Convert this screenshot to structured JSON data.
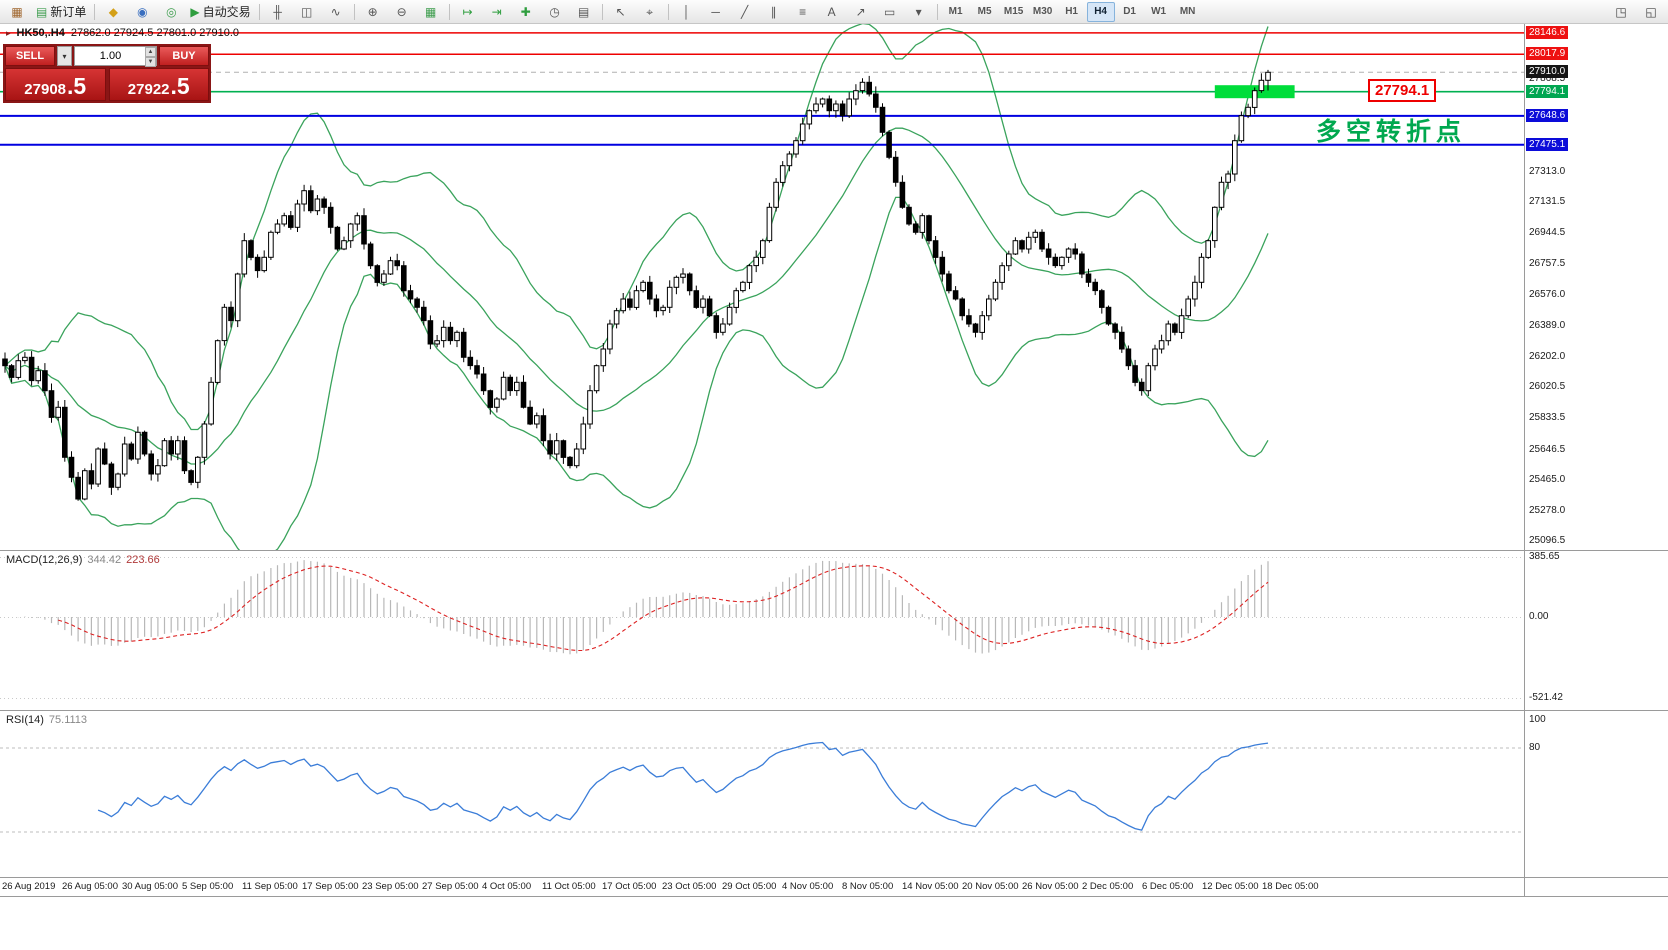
{
  "colors": {
    "up_candle": "#ffffff",
    "down_candle": "#000000",
    "candle_outline": "#000000",
    "bollinger": "#3aa35c",
    "bid_line": "#b0b0b0",
    "accent_red": "#ee0000",
    "accent_green": "#00b050",
    "accent_blue": "#0000e0"
  },
  "toolbar": {
    "items": [
      {
        "name": "chart-window-icon",
        "glyph": "▦",
        "glyph_color": "#a0672f"
      },
      {
        "name": "new-order-button",
        "glyph": "▤",
        "glyph_color": "#3f9e4f",
        "label": "新订单"
      },
      {
        "type": "sep"
      },
      {
        "name": "alert-icon",
        "glyph": "◆",
        "glyph_color": "#d4a017"
      },
      {
        "name": "news-icon",
        "glyph": "◉",
        "glyph_color": "#3a6fbf"
      },
      {
        "name": "mailbox-icon",
        "glyph": "◎",
        "glyph_color": "#3f9e4f"
      },
      {
        "name": "auto-trading-button",
        "glyph": "▶",
        "glyph_color": "#2f9e3f",
        "label": "自动交易"
      },
      {
        "type": "sep"
      },
      {
        "name": "bar-chart-icon",
        "glyph": "╫"
      },
      {
        "name": "candlestick-chart-icon",
        "glyph": "◫"
      },
      {
        "name": "line-chart-icon",
        "glyph": "∿"
      },
      {
        "type": "sep"
      },
      {
        "name": "zoom-in-icon",
        "glyph": "⊕"
      },
      {
        "name": "zoom-out-icon",
        "glyph": "⊖"
      },
      {
        "name": "tile-windows-icon",
        "glyph": "▦",
        "glyph_color": "#3f9e4f"
      },
      {
        "type": "sep"
      },
      {
        "name": "auto-scroll-icon",
        "glyph": "↦",
        "glyph_color": "#2f9e3f"
      },
      {
        "name": "chart-shift-icon",
        "glyph": "⇥",
        "glyph_color": "#2f9e3f"
      },
      {
        "name": "add-indicator-icon",
        "glyph": "✚",
        "glyph_color": "#2f9e3f"
      },
      {
        "name": "period-icon",
        "glyph": "◷"
      },
      {
        "name": "template-icon",
        "glyph": "▤"
      },
      {
        "type": "sep"
      },
      {
        "name": "cursor-icon",
        "glyph": "↖"
      },
      {
        "name": "crosshair-icon",
        "glyph": "⌖"
      },
      {
        "type": "sep"
      },
      {
        "name": "vertical-line-icon",
        "glyph": "│"
      },
      {
        "name": "horizontal-line-icon",
        "glyph": "─"
      },
      {
        "name": "trendline-icon",
        "glyph": "╱"
      },
      {
        "name": "channel-icon",
        "glyph": "∥"
      },
      {
        "name": "fibonacci-icon",
        "glyph": "≡"
      },
      {
        "name": "text-tool-icon",
        "glyph": "A"
      },
      {
        "name": "arrows-tool-icon",
        "glyph": "↗"
      },
      {
        "name": "shapes-tool-icon",
        "glyph": "▭"
      },
      {
        "name": "tools-dropdown-icon",
        "glyph": "▾"
      },
      {
        "type": "sep"
      }
    ],
    "timeframes": [
      "M1",
      "M5",
      "M15",
      "M30",
      "H1",
      "H4",
      "D1",
      "W1",
      "MN"
    ],
    "active_timeframe": "H4",
    "right_items": [
      {
        "name": "chat-icon",
        "glyph": "◳"
      },
      {
        "name": "layout-icon",
        "glyph": "◱"
      }
    ]
  },
  "trade_panel": {
    "sell_label": "SELL",
    "buy_label": "BUY",
    "lot": "1.00",
    "sell_price": "27908",
    "sell_frac": ".5",
    "buy_price": "27922",
    "buy_frac": ".5"
  },
  "chart_data": [
    {
      "type": "candlestick",
      "title": "HK50,.H4",
      "ohlc_text": "27862.0 27924.5 27801.0 27910.0",
      "last_candle": {
        "o": 27862.0,
        "h": 27924.5,
        "l": 27801.0,
        "c": 27910.0
      },
      "bollinger": {
        "period": 20,
        "deviation": 2
      },
      "y_axis": {
        "min": 25044,
        "max": 28200,
        "plain_labels": [
          27868.5,
          27313.0,
          27131.5,
          26944.5,
          26757.5,
          26576.0,
          26389.0,
          26202.0,
          26020.5,
          25833.5,
          25646.5,
          25465.0,
          25278.0,
          25096.5
        ]
      },
      "price_tags": [
        {
          "label": "28146.6",
          "price": 28146.6,
          "bg": "#ee1111"
        },
        {
          "label": "28017.9",
          "price": 28017.9,
          "bg": "#ee1111"
        },
        {
          "label": "27910.0",
          "price": 27910.0,
          "bg": "#151515"
        },
        {
          "label": "27794.1",
          "price": 27794.1,
          "bg": "#00a651"
        },
        {
          "label": "27648.6",
          "price": 27648.6,
          "bg": "#0c0cd9"
        },
        {
          "label": "27475.1",
          "price": 27475.1,
          "bg": "#0c0cd9"
        }
      ],
      "hlines": [
        {
          "price": 28146.6,
          "color": "#ee0000",
          "width": 1.5
        },
        {
          "price": 28017.9,
          "color": "#ee0000",
          "width": 1.5
        },
        {
          "price": 27794.1,
          "color": "#00b050",
          "width": 1.6
        },
        {
          "price": 27648.6,
          "color": "#0000e0",
          "width": 2
        },
        {
          "price": 27475.1,
          "color": "#0000e0",
          "width": 2
        }
      ],
      "green_zone": {
        "price": 27794.1,
        "from_candle": 182,
        "to_candle": 194,
        "height": 13,
        "color": "#00dd3a"
      },
      "annotations": {
        "zone_label": "27794.1",
        "note_text": "多空转折点"
      },
      "x_labels": [
        "26 Aug 2019",
        "26 Aug 05:00",
        "30 Aug 05:00",
        "5 Sep 05:00",
        "11 Sep 05:00",
        "17 Sep 05:00",
        "23 Sep 05:00",
        "27 Sep 05:00",
        "4 Oct 05:00",
        "11 Oct 05:00",
        "17 Oct 05:00",
        "23 Oct 05:00",
        "29 Oct 05:00",
        "4 Nov 05:00",
        "8 Nov 05:00",
        "14 Nov 05:00",
        "20 Nov 05:00",
        "26 Nov 05:00",
        "2 Dec 05:00",
        "6 Dec 05:00",
        "12 Dec 05:00",
        "18 Dec 05:00"
      ],
      "closes": [
        26150,
        26080,
        26180,
        26200,
        26060,
        26120,
        26000,
        25840,
        25900,
        25600,
        25480,
        25350,
        25520,
        25440,
        25650,
        25560,
        25420,
        25500,
        25680,
        25590,
        25750,
        25620,
        25500,
        25550,
        25700,
        25620,
        25700,
        25520,
        25450,
        25600,
        25800,
        26050,
        26300,
        26500,
        26420,
        26700,
        26900,
        26800,
        26720,
        26800,
        26950,
        27000,
        27050,
        26980,
        27120,
        27200,
        27080,
        27150,
        27100,
        26980,
        26850,
        26900,
        27000,
        27050,
        26880,
        26750,
        26650,
        26700,
        26780,
        26750,
        26600,
        26550,
        26500,
        26420,
        26280,
        26300,
        26380,
        26300,
        26350,
        26200,
        26150,
        26100,
        26000,
        25900,
        25950,
        26080,
        26000,
        26050,
        25900,
        25800,
        25850,
        25700,
        25620,
        25700,
        25600,
        25550,
        25650,
        25800,
        26000,
        26150,
        26250,
        26400,
        26480,
        26550,
        26500,
        26600,
        26650,
        26550,
        26480,
        26500,
        26620,
        26680,
        26700,
        26600,
        26500,
        26550,
        26450,
        26350,
        26400,
        26500,
        26600,
        26650,
        26750,
        26800,
        26900,
        27100,
        27250,
        27350,
        27420,
        27500,
        27600,
        27680,
        27720,
        27750,
        27680,
        27720,
        27650,
        27750,
        27800,
        27850,
        27780,
        27700,
        27550,
        27400,
        27250,
        27100,
        27000,
        26950,
        27050,
        26900,
        26800,
        26700,
        26600,
        26550,
        26450,
        26400,
        26350,
        26450,
        26550,
        26650,
        26750,
        26820,
        26900,
        26850,
        26920,
        26950,
        26850,
        26800,
        26750,
        26800,
        26850,
        26820,
        26700,
        26650,
        26600,
        26500,
        26400,
        26350,
        26250,
        26150,
        26050,
        26000,
        26150,
        26250,
        26300,
        26400,
        26350,
        26450,
        26550,
        26650,
        26800,
        26900,
        27100,
        27250,
        27300,
        27500,
        27650,
        27700,
        27800,
        27862,
        27910
      ]
    },
    {
      "type": "macd-histogram",
      "label": "MACD(12,26,9)",
      "value_main": "344.42",
      "value_signal": "223.66",
      "axis_labels": [
        "385.65",
        "0.00",
        "-521.42"
      ],
      "params": {
        "fast": 12,
        "slow": 26,
        "signal": 9
      },
      "colors": {
        "histogram": "#b8b8b8",
        "signal": "#dd2222"
      }
    },
    {
      "type": "line",
      "label": "RSI(14)",
      "value_text": "75.1113",
      "axis_labels": [
        "100",
        "80"
      ],
      "levels": [
        80,
        20
      ],
      "color": "#3b7dd8"
    }
  ]
}
